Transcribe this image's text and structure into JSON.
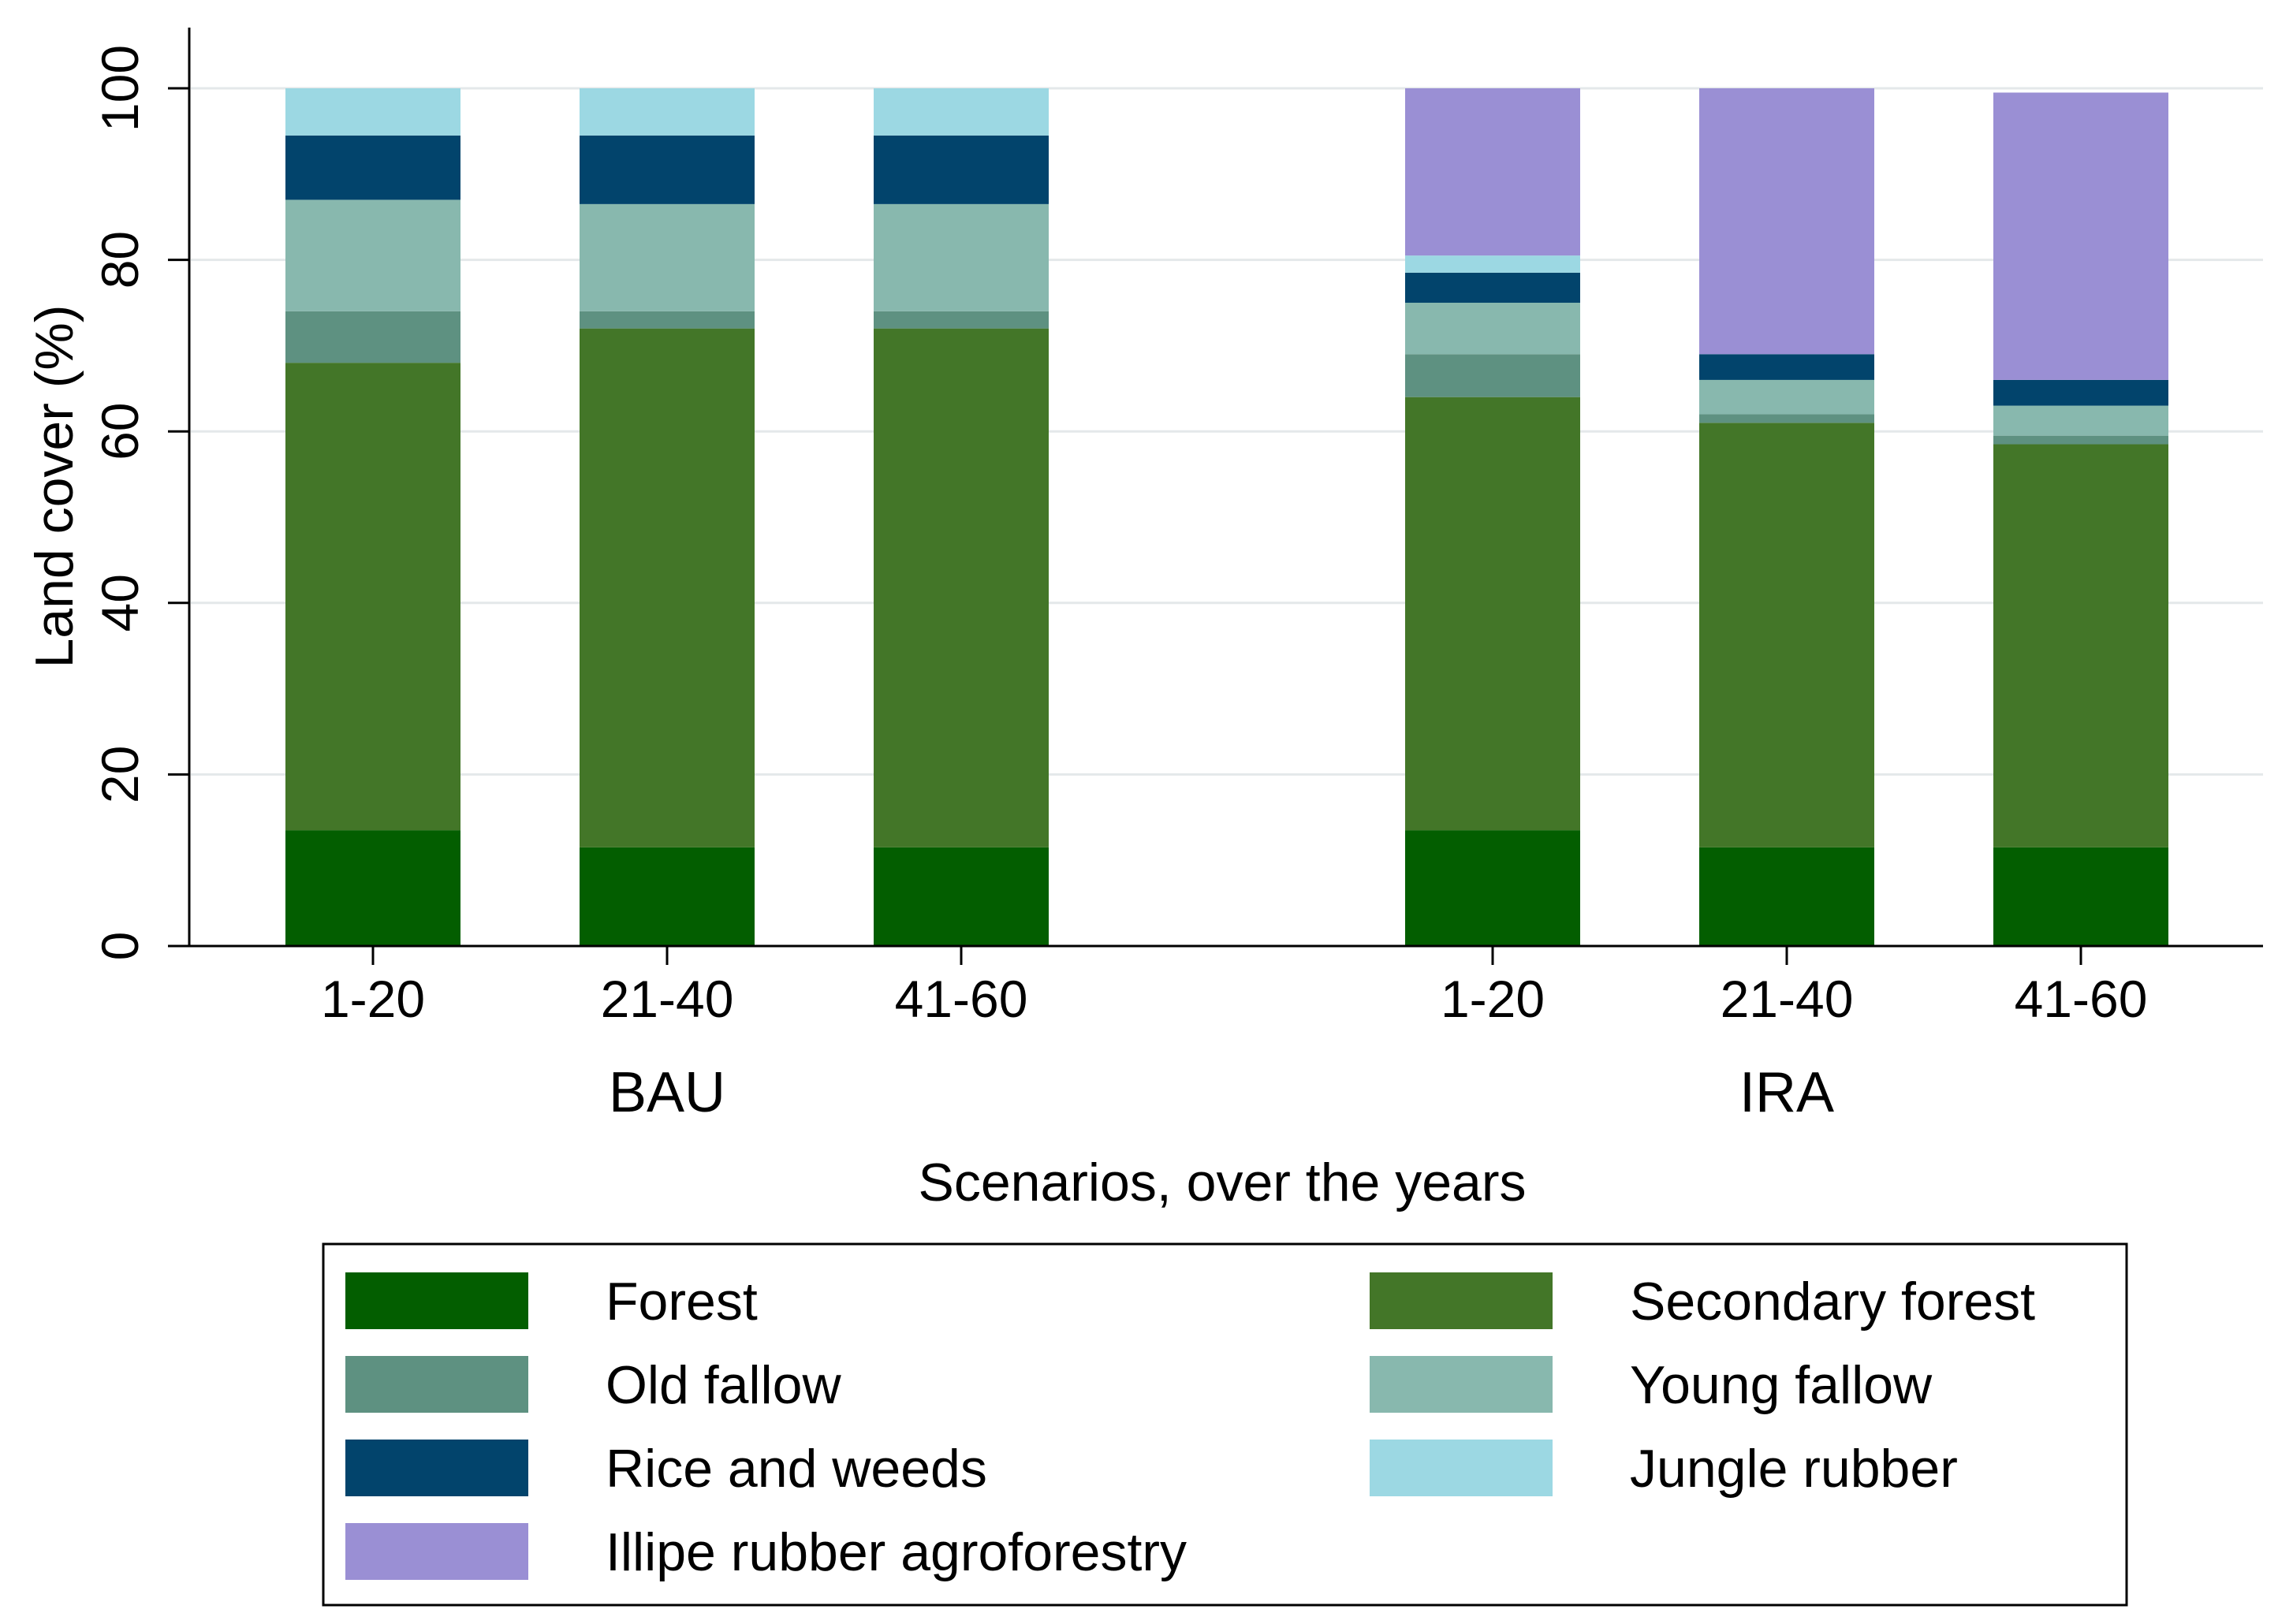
{
  "chart_data": {
    "type": "stacked-bar",
    "ylabel": "Land cover (%)",
    "xlabel": "Scenarios, over the years",
    "ylim": [
      0,
      100
    ],
    "yticks": [
      0,
      20,
      40,
      60,
      80,
      100
    ],
    "grid": true,
    "legend_position": "bottom",
    "groups": [
      {
        "name": "BAU",
        "categories": [
          "1-20",
          "21-40",
          "41-60"
        ]
      },
      {
        "name": "IRA",
        "categories": [
          "1-20",
          "21-40",
          "41-60"
        ]
      }
    ],
    "series": [
      {
        "name": "Forest",
        "color": "#035e00",
        "values": [
          13.5,
          11.5,
          11.5,
          13.5,
          11.5,
          11.5
        ]
      },
      {
        "name": "Secondary forest",
        "color": "#437628",
        "values": [
          54.5,
          60.5,
          60.5,
          50.5,
          49.5,
          47.0
        ]
      },
      {
        "name": "Old fallow",
        "color": "#5e9181",
        "values": [
          6.0,
          2.0,
          2.0,
          5.0,
          1.0,
          1.0
        ]
      },
      {
        "name": "Young fallow",
        "color": "#88b8ae",
        "values": [
          13.0,
          12.5,
          12.5,
          6.0,
          4.0,
          3.5
        ]
      },
      {
        "name": "Rice and weeds",
        "color": "#02446c",
        "values": [
          7.5,
          8.0,
          8.0,
          3.5,
          3.0,
          3.0
        ]
      },
      {
        "name": "Jungle rubber",
        "color": "#9cd8e3",
        "values": [
          5.5,
          5.5,
          5.5,
          2.0,
          0.0,
          0.0
        ]
      },
      {
        "name": "Illipe rubber agroforestry",
        "color": "#9a8fd4",
        "values": [
          0.0,
          0.0,
          0.0,
          19.5,
          31.0,
          33.5
        ]
      }
    ]
  }
}
